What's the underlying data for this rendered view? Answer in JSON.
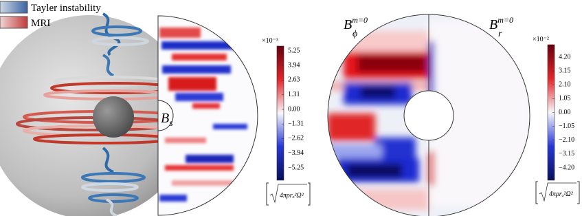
{
  "legend": {
    "items": [
      {
        "label": "Tayler instability"
      },
      {
        "label": "MRI"
      }
    ]
  },
  "panels": [
    {
      "label": {
        "base": "B",
        "sub": "s"
      }
    },
    {
      "label": {
        "base": "B",
        "sub": "ϕ",
        "sup": "m=0"
      }
    },
    {
      "label": {
        "base": "B",
        "sub": "r",
        "sup": "m=0"
      }
    }
  ],
  "colorbars": [
    {
      "scale_label": "×10⁻³",
      "lim": [
        -6.36,
        5.68
      ],
      "ticks": [
        5.25,
        3.94,
        2.63,
        1.31,
        {
          "value": 0,
          "label": "0.00"
        },
        {
          "value": -1.31,
          "label": "−1.31"
        },
        {
          "value": -2.62,
          "label": "−2.62"
        },
        {
          "value": -3.94,
          "label": "−3.94"
        },
        {
          "value": -5.25,
          "label": "−5.25"
        }
      ],
      "units": "4πρrₒ²Ω²"
    },
    {
      "scale_label": "×10⁻²",
      "lim": [
        -5.14,
        5.14
      ],
      "ticks": [
        {
          "value": 4.2,
          "label": "4.20"
        },
        3.15,
        {
          "value": 2.1,
          "label": "2.10"
        },
        1.05,
        {
          "value": 0,
          "label": "0.00"
        },
        {
          "value": -1.05,
          "label": "−1.05"
        },
        {
          "value": -2.1,
          "label": "−2.10"
        },
        {
          "value": -3.15,
          "label": "−3.15"
        },
        {
          "value": -4.2,
          "label": "−4.20"
        }
      ],
      "units": "4πρrₒ²Ω²"
    }
  ]
}
